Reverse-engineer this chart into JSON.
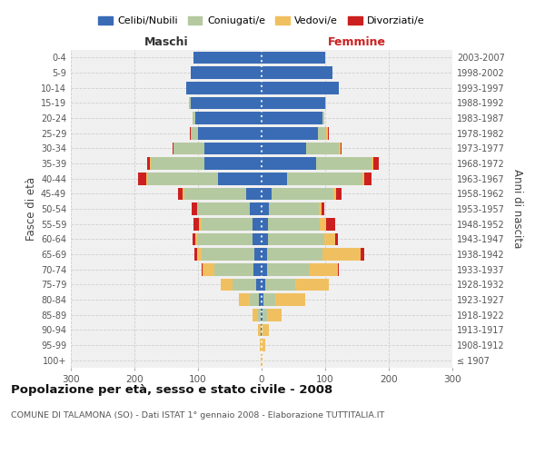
{
  "age_groups": [
    "100+",
    "95-99",
    "90-94",
    "85-89",
    "80-84",
    "75-79",
    "70-74",
    "65-69",
    "60-64",
    "55-59",
    "50-54",
    "45-49",
    "40-44",
    "35-39",
    "30-34",
    "25-29",
    "20-24",
    "15-19",
    "10-14",
    "5-9",
    "0-4"
  ],
  "birth_years": [
    "≤ 1907",
    "1908-1912",
    "1913-1917",
    "1918-1922",
    "1923-1927",
    "1928-1932",
    "1933-1937",
    "1938-1942",
    "1943-1947",
    "1948-1952",
    "1953-1957",
    "1958-1962",
    "1963-1967",
    "1968-1972",
    "1973-1977",
    "1978-1982",
    "1983-1987",
    "1988-1992",
    "1993-1997",
    "1998-2002",
    "2003-2007"
  ],
  "colors": {
    "celibi": "#3a6cb5",
    "coniugati": "#b5c9a0",
    "vedovi": "#f0c060",
    "divorziati": "#cc2020"
  },
  "maschi_celibi": [
    0,
    0,
    1,
    2,
    4,
    8,
    13,
    12,
    15,
    15,
    18,
    25,
    68,
    90,
    90,
    100,
    105,
    112,
    118,
    112,
    107
  ],
  "maschi_coniugati": [
    0,
    0,
    1,
    4,
    14,
    38,
    62,
    82,
    85,
    80,
    82,
    97,
    112,
    85,
    48,
    12,
    4,
    2,
    0,
    0,
    0
  ],
  "maschi_vedovi": [
    1,
    3,
    4,
    8,
    18,
    18,
    18,
    8,
    4,
    3,
    2,
    2,
    2,
    1,
    0,
    0,
    0,
    0,
    0,
    0,
    0
  ],
  "maschi_divorziati": [
    0,
    0,
    0,
    0,
    0,
    0,
    1,
    4,
    5,
    9,
    8,
    7,
    12,
    4,
    2,
    1,
    0,
    0,
    0,
    0,
    0
  ],
  "femmine_nubili": [
    0,
    0,
    0,
    2,
    3,
    5,
    8,
    8,
    10,
    10,
    12,
    15,
    40,
    85,
    70,
    88,
    95,
    100,
    122,
    112,
    100
  ],
  "femmine_coniugate": [
    0,
    0,
    2,
    6,
    18,
    48,
    68,
    88,
    88,
    82,
    78,
    98,
    118,
    88,
    52,
    14,
    4,
    2,
    0,
    0,
    0
  ],
  "femmine_vedove": [
    1,
    5,
    10,
    24,
    48,
    52,
    44,
    60,
    18,
    9,
    4,
    4,
    3,
    2,
    2,
    2,
    0,
    0,
    0,
    0,
    0
  ],
  "femmine_divorziate": [
    0,
    0,
    0,
    0,
    0,
    0,
    1,
    5,
    4,
    14,
    4,
    9,
    12,
    9,
    2,
    1,
    0,
    0,
    0,
    0,
    0
  ],
  "title": "Popolazione per età, sesso e stato civile - 2008",
  "subtitle": "COMUNE DI TALAMONA (SO) - Dati ISTAT 1° gennaio 2008 - Elaborazione TUTTITALIA.IT",
  "legend_labels": [
    "Celibi/Nubili",
    "Coniugati/e",
    "Vedovi/e",
    "Divorziati/e"
  ],
  "ylabel_left": "Fasce di età",
  "ylabel_right": "Anni di nascita",
  "xlabel_left": "Maschi",
  "xlabel_right": "Femmine",
  "bg_axes": "#f0f0f0"
}
